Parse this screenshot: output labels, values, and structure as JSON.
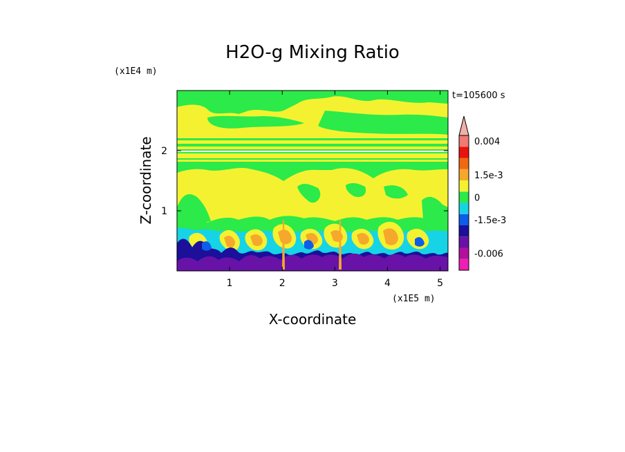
{
  "chart_data": {
    "type": "heatmap",
    "title": "H2O-g Mixing Ratio",
    "xlabel": "X-coordinate",
    "ylabel": "Z-coordinate",
    "x_unit": "(x1E5 m)",
    "y_unit": "(x1E4 m)",
    "time_label": "t=105600 s",
    "xlim": [
      0,
      5.15
    ],
    "ylim": [
      0,
      3.0
    ],
    "x_ticks": [
      1,
      2,
      3,
      4,
      5
    ],
    "y_ticks": [
      1,
      2
    ],
    "x_tick_labels": [
      "1",
      "2",
      "3",
      "4",
      "5"
    ],
    "y_tick_labels": [
      "1",
      "2"
    ],
    "colorbar": {
      "levels": [
        -0.0075,
        -0.006,
        -0.0045,
        -0.003,
        -0.0015,
        -0.00075,
        0,
        0.00075,
        0.0015,
        0.00225,
        0.003,
        0.004
      ],
      "colors": [
        "#ee1fb5",
        "#b0119d",
        "#6812a8",
        "#1c0f9a",
        "#0e5cea",
        "#16d4e6",
        "#2bea49",
        "#f4f230",
        "#f6a82d",
        "#f06812",
        "#e8120f",
        "#f07a74"
      ],
      "labels": [
        {
          "value": 0.004,
          "text": "0.004"
        },
        {
          "value": 0.0015,
          "text": "1.5e-3"
        },
        {
          "value": 0,
          "text": "0"
        },
        {
          "value": -0.0015,
          "text": "-1.5e-3"
        },
        {
          "value": -0.006,
          "text": "-0.006"
        }
      ],
      "overflow_color": "#f3b0a6"
    },
    "layers": [
      {
        "z_range": [
          2.6,
          3.0
        ],
        "dominant": "green",
        "value": -0.0003
      },
      {
        "z_range": [
          2.2,
          2.6
        ],
        "dominant": "yellow",
        "value": 0.0004
      },
      {
        "z_range": [
          2.0,
          2.2
        ],
        "dominant": "green/yellow bands",
        "value": -0.0002
      },
      {
        "z_range": [
          1.6,
          2.0
        ],
        "dominant": "green",
        "value": -0.0003
      },
      {
        "z_range": [
          0.8,
          1.6
        ],
        "dominant": "yellow",
        "value": 0.0004
      },
      {
        "z_range": [
          0.4,
          0.8
        ],
        "dominant": "cyan/yellow/orange mix",
        "value": 0.0012
      },
      {
        "z_range": [
          0.0,
          0.4
        ],
        "dominant": "blue/purple",
        "value": -0.004
      }
    ]
  }
}
